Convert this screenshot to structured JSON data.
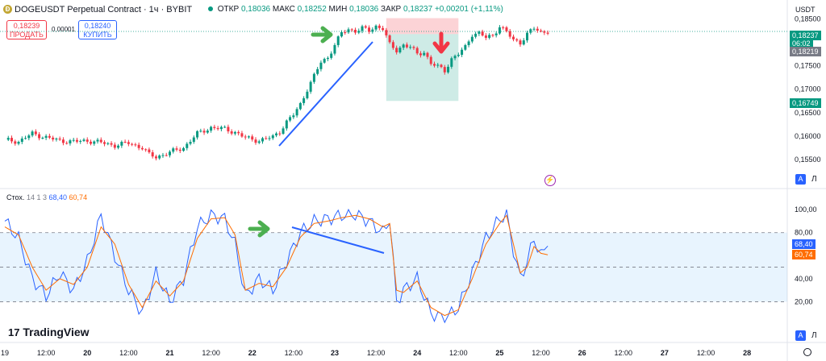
{
  "header": {
    "symbol_icon_letter": "Ð",
    "title": "DOGEUSDT Perpetual Contract · 1ч · BYBIT",
    "open_label": "ОТКР",
    "open_value": "0,18036",
    "high_label": "МАКС",
    "high_value": "0,18252",
    "low_label": "МИН",
    "low_value": "0,18036",
    "close_label": "ЗАКР",
    "close_value": "0,18237",
    "change_value": "+0,00201 (+1,11%)",
    "currency": "USDT"
  },
  "trade": {
    "sell_price": "0,18239",
    "sell_label": "ПРОДАТЬ",
    "spread": "0,00001",
    "buy_price": "0,18240",
    "buy_label": "КУПИТЬ"
  },
  "price_tags": {
    "last_price": "0,18237",
    "countdown": "06:02",
    "cursor_price": "0,18219",
    "target_price": "0,16749"
  },
  "stoch_legend": {
    "name": "Стох.",
    "params": "14 1 3",
    "k_value": "68,40",
    "d_value": "60,74"
  },
  "stoch_tags": {
    "k": "68,40",
    "d": "60,74"
  },
  "logo_text": "TradingView",
  "scale_buttons": {
    "a": "A",
    "l": "Л"
  },
  "colors": {
    "up": "#089981",
    "down": "#f23645",
    "k_line": "#2962ff",
    "d_line": "#ff6d00",
    "last_price_tag": "#089981",
    "cursor_tag": "#787b86",
    "trend_line": "#2962ff",
    "arrow_green": "#4caf50",
    "arrow_red": "#f23645"
  },
  "chart_data": [
    {
      "type": "candlestick",
      "title": "DOGEUSDT Perpetual Contract · 1ч · BYBIT",
      "ylabel": "USDT",
      "ylim": [
        0.151,
        0.1865
      ],
      "y_ticks": [
        "0,18500",
        "0,17500",
        "0,17000",
        "0,16500",
        "0,16000",
        "0,15500"
      ],
      "y_tick_values": [
        0.185,
        0.175,
        0.17,
        0.165,
        0.16,
        0.155
      ],
      "x_ticks": [
        "19",
        "12:00",
        "20",
        "12:00",
        "21",
        "12:00",
        "22",
        "12:00",
        "23",
        "12:00",
        "24",
        "12:00",
        "25",
        "12:00",
        "26",
        "12:00",
        "27",
        "12:00",
        "28"
      ],
      "x_tick_hours": [
        0,
        12,
        24,
        36,
        48,
        60,
        72,
        84,
        96,
        108,
        120,
        132,
        144,
        156,
        168,
        180,
        192,
        204,
        216
      ],
      "close_anchor_hours": [
        0,
        4,
        8,
        12,
        16,
        20,
        24,
        28,
        32,
        36,
        40,
        42,
        44,
        48,
        52,
        56,
        60,
        64,
        67,
        70,
        74,
        78,
        80,
        82,
        84,
        86,
        88,
        90,
        92,
        94,
        96,
        98,
        100,
        102,
        104,
        106,
        108,
        110,
        112,
        114,
        116,
        118,
        120,
        122,
        124,
        126,
        128,
        130,
        132,
        134,
        136,
        138,
        140,
        142,
        144,
        146,
        148,
        150,
        152,
        154,
        156,
        158
      ],
      "close_anchor_values": [
        0.1592,
        0.1588,
        0.1605,
        0.1597,
        0.159,
        0.1588,
        0.159,
        0.1586,
        0.158,
        0.1585,
        0.1575,
        0.156,
        0.1555,
        0.1565,
        0.1575,
        0.1605,
        0.1618,
        0.1615,
        0.1608,
        0.1596,
        0.159,
        0.1598,
        0.161,
        0.163,
        0.1645,
        0.1668,
        0.17,
        0.1728,
        0.1758,
        0.1768,
        0.1795,
        0.182,
        0.1828,
        0.1825,
        0.183,
        0.1825,
        0.1835,
        0.183,
        0.1795,
        0.1783,
        0.1795,
        0.179,
        0.1775,
        0.178,
        0.1755,
        0.1748,
        0.174,
        0.1765,
        0.1775,
        0.179,
        0.1818,
        0.182,
        0.181,
        0.1815,
        0.1835,
        0.1822,
        0.1805,
        0.18,
        0.1818,
        0.183,
        0.1822,
        0.1824
      ],
      "trade_zone": {
        "start_hour": 111,
        "end_hour": 132,
        "entry": 0.1818,
        "stop": 0.1852,
        "target": 0.1675
      }
    },
    {
      "type": "line",
      "title": "Стох. 14 1 3",
      "ylim": [
        0,
        105
      ],
      "y_ticks": [
        "100,00",
        "80,00",
        "60,00",
        "40,00",
        "20,00"
      ],
      "y_tick_values": [
        100,
        80,
        60,
        40,
        20
      ],
      "band": [
        20,
        80
      ],
      "series": [
        {
          "name": "%K",
          "x_hours": [
            0,
            4,
            8,
            12,
            16,
            20,
            24,
            28,
            32,
            36,
            40,
            44,
            48,
            52,
            56,
            60,
            64,
            67,
            70,
            74,
            78,
            82,
            86,
            90,
            94,
            98,
            102,
            106,
            110,
            112,
            114,
            116,
            120,
            124,
            128,
            132,
            136,
            140,
            144,
            146,
            148,
            150,
            152,
            154,
            156,
            158
          ],
          "values": [
            90,
            75,
            40,
            25,
            45,
            30,
            55,
            95,
            60,
            30,
            10,
            45,
            20,
            40,
            85,
            95,
            92,
            70,
            25,
            40,
            30,
            55,
            80,
            90,
            92,
            95,
            96,
            90,
            80,
            92,
            20,
            30,
            40,
            10,
            5,
            15,
            45,
            75,
            92,
            96,
            65,
            40,
            55,
            75,
            60,
            68.4
          ]
        },
        {
          "name": "%D",
          "x_hours": [
            0,
            4,
            8,
            12,
            16,
            20,
            24,
            28,
            32,
            36,
            40,
            44,
            48,
            52,
            56,
            60,
            64,
            67,
            70,
            74,
            78,
            82,
            86,
            90,
            94,
            98,
            102,
            106,
            110,
            112,
            114,
            116,
            120,
            124,
            128,
            132,
            136,
            140,
            144,
            146,
            148,
            150,
            152,
            154,
            156,
            158
          ],
          "values": [
            85,
            78,
            50,
            30,
            40,
            35,
            50,
            85,
            70,
            35,
            15,
            38,
            25,
            38,
            75,
            92,
            93,
            78,
            30,
            36,
            33,
            50,
            76,
            88,
            90,
            93,
            95,
            92,
            85,
            88,
            30,
            28,
            38,
            15,
            8,
            13,
            40,
            70,
            88,
            95,
            70,
            45,
            50,
            68,
            62,
            60.74
          ]
        }
      ]
    }
  ]
}
